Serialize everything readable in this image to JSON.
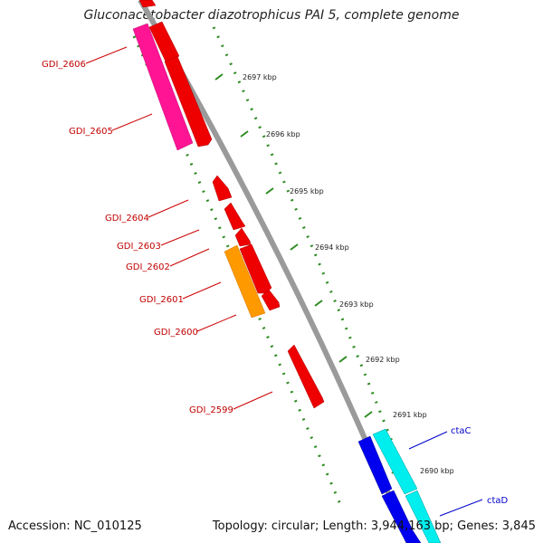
{
  "title": "Gluconacetobacter diazotrophicus PAI 5, complete genome",
  "footer": {
    "accession": "Accession: NC_010125",
    "topology": "Topology: circular; Length: 3,944,163 bp; Genes: 3,845"
  },
  "colors": {
    "backbone": "#8c8c8c",
    "tick": "#2e8b22",
    "gene_forward": "#ee0000",
    "gene_reverse": "#ff1493",
    "gene_orange": "#ff9900",
    "cta_forward": "#00eeee",
    "cta_reverse": "#0000ee",
    "label_red": "#c00000",
    "label_blue": "#0000cc"
  },
  "kbp_markers": [
    "2697 kbp",
    "2696 kbp",
    "2695 kbp",
    "2694 kbp",
    "2693 kbp",
    "2692 kbp",
    "2691 kbp",
    "2690 kbp"
  ],
  "gene_labels": [
    "GDI_2606",
    "GDI_2605",
    "GDI_2604",
    "GDI_2603",
    "GDI_2602",
    "GDI_2601",
    "GDI_2600",
    "GDI_2599",
    "ctaC",
    "ctaD"
  ]
}
